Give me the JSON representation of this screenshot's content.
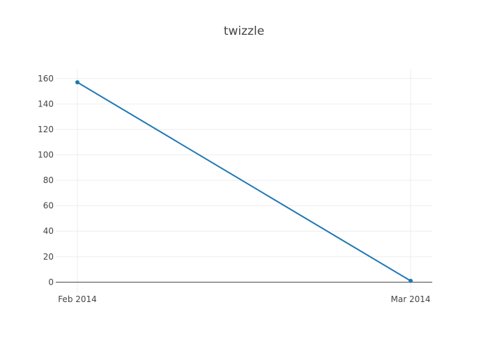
{
  "chart_data": {
    "type": "line",
    "title": "twizzle",
    "xlabel": "",
    "ylabel": "",
    "x": [
      "Feb 2014",
      "Mar 2014"
    ],
    "series": [
      {
        "values": [
          157,
          1
        ],
        "color": "#1f77b4"
      }
    ],
    "ylim": [
      -8,
      167
    ],
    "y_ticks": [
      0,
      20,
      40,
      60,
      80,
      100,
      120,
      140,
      160
    ],
    "x_ticks": [
      "Feb 2014",
      "Mar 2014"
    ],
    "grid": true,
    "legend": "none"
  }
}
